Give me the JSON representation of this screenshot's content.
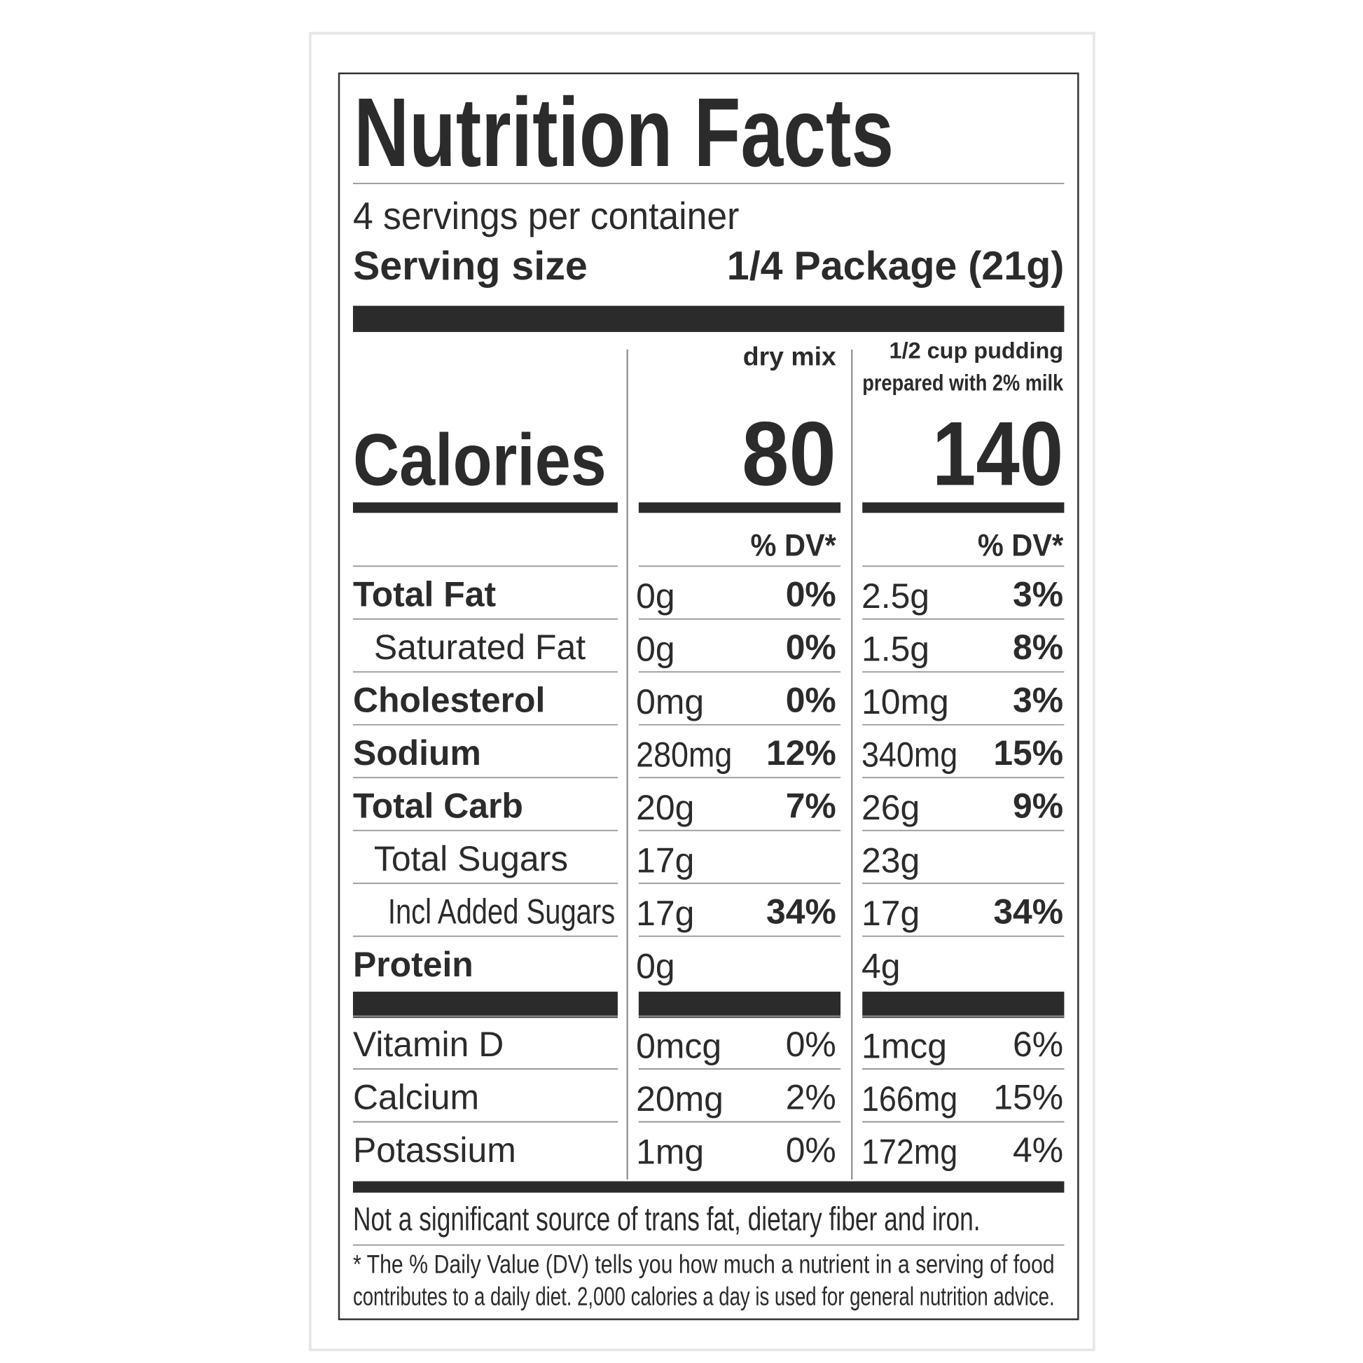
{
  "title": "Nutrition Facts",
  "servings": "4 servings per container",
  "serving_size": {
    "label": "Serving size",
    "value": "1/4 Package (21g)"
  },
  "calories_label": "Calories",
  "columns": [
    {
      "header": [
        "dry mix"
      ],
      "calories": "80",
      "dv_header": "% DV*"
    },
    {
      "header": [
        "1/2 cup pudding",
        "prepared with 2% milk"
      ],
      "calories": "140",
      "dv_header": "% DV*"
    }
  ],
  "nutrients": [
    {
      "name": "Total Fat",
      "bold": true,
      "indent": 0,
      "values": [
        {
          "amount": "0g",
          "dv": "0%"
        },
        {
          "amount": "2.5g",
          "dv": "3%"
        }
      ]
    },
    {
      "name": "Saturated Fat",
      "bold": false,
      "indent": 1,
      "values": [
        {
          "amount": "0g",
          "dv": "0%"
        },
        {
          "amount": "1.5g",
          "dv": "8%"
        }
      ]
    },
    {
      "name": "Cholesterol",
      "bold": true,
      "indent": 0,
      "values": [
        {
          "amount": "0mg",
          "dv": "0%"
        },
        {
          "amount": "10mg",
          "dv": "3%"
        }
      ]
    },
    {
      "name": "Sodium",
      "bold": true,
      "indent": 0,
      "values": [
        {
          "amount": "280mg",
          "dv": "12%"
        },
        {
          "amount": "340mg",
          "dv": "15%"
        }
      ]
    },
    {
      "name": "Total Carb",
      "bold": true,
      "indent": 0,
      "values": [
        {
          "amount": "20g",
          "dv": "7%"
        },
        {
          "amount": "26g",
          "dv": "9%"
        }
      ]
    },
    {
      "name": "Total Sugars",
      "bold": false,
      "indent": 1,
      "values": [
        {
          "amount": "17g"
        },
        {
          "amount": "23g"
        }
      ]
    },
    {
      "name": "Incl Added Sugars",
      "bold": false,
      "indent": 2,
      "values": [
        {
          "amount": "17g",
          "dv": "34%"
        },
        {
          "amount": "17g",
          "dv": "34%"
        }
      ]
    },
    {
      "name": "Protein",
      "bold": true,
      "indent": 0,
      "values": [
        {
          "amount": "0g"
        },
        {
          "amount": "4g"
        }
      ]
    }
  ],
  "vitamins": [
    {
      "name": "Vitamin D",
      "values": [
        {
          "amount": "0mcg",
          "dv": "0%"
        },
        {
          "amount": "1mcg",
          "dv": "6%"
        }
      ]
    },
    {
      "name": "Calcium",
      "values": [
        {
          "amount": "20mg",
          "dv": "2%"
        },
        {
          "amount": "166mg",
          "dv": "15%"
        }
      ]
    },
    {
      "name": "Potassium",
      "values": [
        {
          "amount": "1mg",
          "dv": "0%"
        },
        {
          "amount": "172mg",
          "dv": "4%"
        }
      ]
    }
  ],
  "note": "Not a significant source of trans fat, dietary fiber and iron.",
  "footnote": [
    "* The % Daily Value (DV) tells you how much a nutrient in a serving of food",
    "contributes to a daily diet. 2,000 calories a day is used for general nutrition advice."
  ]
}
